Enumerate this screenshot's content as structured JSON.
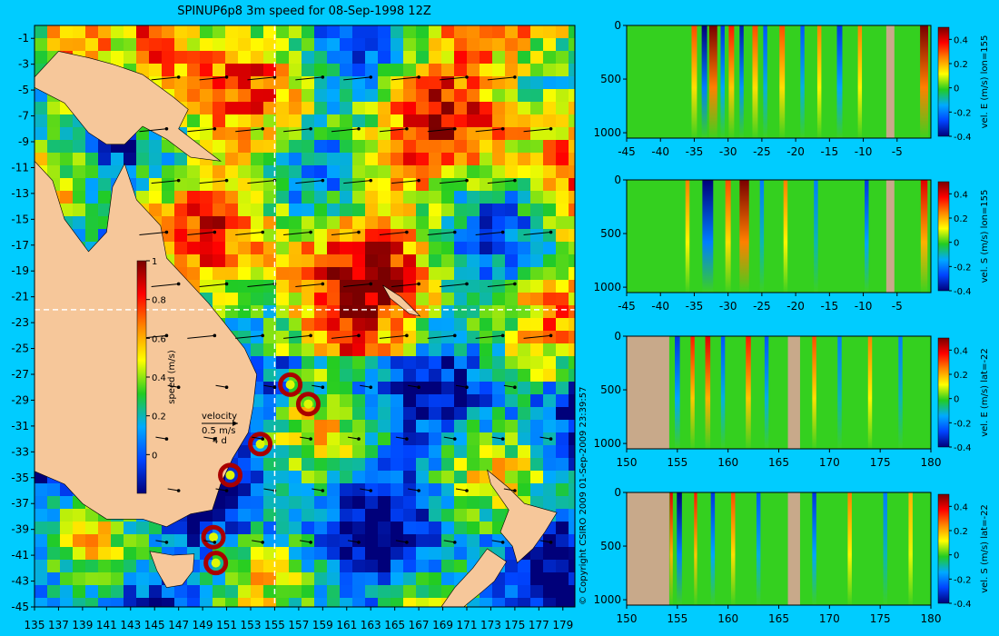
{
  "colors": {
    "background": "#00ccff",
    "land": "#f6c79a",
    "profile_land": "#c8a98a",
    "colormap": [
      "#00007a",
      "#0044ff",
      "#00aaff",
      "#22cc22",
      "#ffff00",
      "#ff8800",
      "#ff0000",
      "#7a0000"
    ]
  },
  "chart_data": [
    {
      "type": "heatmap",
      "title": "SPINUP6p8 3m speed for 08-Sep-1998 12Z",
      "xlim": [
        135,
        180
      ],
      "ylim": [
        -45,
        0
      ],
      "x_ticks": [
        "135",
        "137",
        "139",
        "141",
        "143",
        "145",
        "147",
        "149",
        "151",
        "153",
        "155",
        "157",
        "159",
        "161",
        "163",
        "165",
        "167",
        "169",
        "171",
        "173",
        "175",
        "177",
        "179"
      ],
      "y_ticks": [
        "-1",
        "-3",
        "-5",
        "-7",
        "-9",
        "-11",
        "-13",
        "-15",
        "-17",
        "-19",
        "-21",
        "-23",
        "-25",
        "-27",
        "-29",
        "-31",
        "-33",
        "-35",
        "-37",
        "-39",
        "-41",
        "-43",
        "-45"
      ],
      "section_lines": {
        "lon": 155,
        "lat": -22
      },
      "colorbar": {
        "label": "speed (m/s)",
        "range": [
          -0.2,
          1.0
        ],
        "ticks": [
          "1",
          "0.8",
          "0.6",
          "0.4",
          "0.2",
          "0"
        ]
      },
      "velocity_key": {
        "title": "velocity",
        "speed": "0.5 m/s",
        "duration": "4 d"
      },
      "eddies": [
        {
          "lon": 153.8,
          "lat": -32.4
        },
        {
          "lon": 151.3,
          "lat": -34.8
        },
        {
          "lon": 149.9,
          "lat": -39.6
        },
        {
          "lon": 150.1,
          "lat": -41.6
        },
        {
          "lon": 156.3,
          "lat": -27.8
        },
        {
          "lon": 157.8,
          "lat": -29.3
        }
      ]
    },
    {
      "type": "heatmap",
      "xlim": [
        -45,
        0
      ],
      "ylim": [
        1050,
        0
      ],
      "x_ticks": [
        "-45",
        "-40",
        "-35",
        "-30",
        "-25",
        "-20",
        "-15",
        "-10",
        "-5"
      ],
      "y_ticks": [
        "0",
        "500",
        "1000"
      ],
      "colorbar": {
        "label": "vel. E (m/s) lon=155",
        "range": [
          -0.4,
          0.5
        ],
        "ticks": [
          "0.4",
          "0.2",
          "0",
          "-0.2",
          "-0.4"
        ]
      },
      "land_bands": [
        [
          -6.6,
          -5.4
        ]
      ],
      "jets": [
        {
          "x": -35.0,
          "w": 0.8,
          "v": 0.3
        },
        {
          "x": -33.5,
          "w": 0.8,
          "v": -0.4
        },
        {
          "x": -32.2,
          "w": 1.2,
          "v": 0.5
        },
        {
          "x": -30.8,
          "w": 0.6,
          "v": -0.3
        },
        {
          "x": -29.5,
          "w": 0.8,
          "v": 0.35
        },
        {
          "x": -28.0,
          "w": 0.6,
          "v": -0.35
        },
        {
          "x": -26.0,
          "w": 0.8,
          "v": 0.3
        },
        {
          "x": -24.5,
          "w": 0.6,
          "v": -0.25
        },
        {
          "x": -22.0,
          "w": 0.8,
          "v": 0.3
        },
        {
          "x": -19.0,
          "w": 0.6,
          "v": -0.25
        },
        {
          "x": -16.5,
          "w": 0.6,
          "v": 0.25
        },
        {
          "x": -13.5,
          "w": 0.8,
          "v": -0.3
        },
        {
          "x": -10.5,
          "w": 0.6,
          "v": 0.25
        },
        {
          "x": -1.0,
          "w": 1.2,
          "v": 0.5
        }
      ]
    },
    {
      "type": "heatmap",
      "xlim": [
        -45,
        0
      ],
      "ylim": [
        1050,
        0
      ],
      "x_ticks": [
        "-45",
        "-40",
        "-35",
        "-30",
        "-25",
        "-20",
        "-15",
        "-10",
        "-5"
      ],
      "y_ticks": [
        "0",
        "500",
        "1000"
      ],
      "colorbar": {
        "label": "vel. S (m/s) lon=155",
        "range": [
          -0.4,
          0.5
        ],
        "ticks": [
          "0.4",
          "0.2",
          "0",
          "-0.2",
          "-0.4"
        ]
      },
      "land_bands": [
        [
          -6.6,
          -5.4
        ]
      ],
      "jets": [
        {
          "x": -36.0,
          "w": 0.6,
          "v": 0.25
        },
        {
          "x": -33.0,
          "w": 1.6,
          "v": -0.4
        },
        {
          "x": -30.0,
          "w": 0.8,
          "v": 0.3
        },
        {
          "x": -27.6,
          "w": 1.4,
          "v": 0.5
        },
        {
          "x": -25.0,
          "w": 0.6,
          "v": -0.2
        },
        {
          "x": -21.5,
          "w": 0.6,
          "v": 0.25
        },
        {
          "x": -17.0,
          "w": 0.6,
          "v": -0.2
        },
        {
          "x": -9.5,
          "w": 0.6,
          "v": -0.3
        },
        {
          "x": -1.0,
          "w": 1.0,
          "v": 0.4
        }
      ]
    },
    {
      "type": "heatmap",
      "xlim": [
        150,
        180
      ],
      "ylim": [
        1050,
        0
      ],
      "x_ticks": [
        "150",
        "155",
        "160",
        "165",
        "170",
        "175",
        "180"
      ],
      "y_ticks": [
        "0",
        "500",
        "1000"
      ],
      "colorbar": {
        "label": "vel. E (m/s) lat=-22",
        "range": [
          -0.4,
          0.5
        ],
        "ticks": [
          "0.4",
          "0.2",
          "0",
          "-0.2",
          "-0.4"
        ]
      },
      "land_bands": [
        [
          150,
          154.2
        ],
        [
          165.9,
          167.1
        ]
      ],
      "jets": [
        {
          "x": 155.0,
          "w": 0.5,
          "v": -0.3
        },
        {
          "x": 156.5,
          "w": 0.4,
          "v": 0.35
        },
        {
          "x": 158.0,
          "w": 0.5,
          "v": 0.4
        },
        {
          "x": 159.5,
          "w": 0.4,
          "v": -0.25
        },
        {
          "x": 162.0,
          "w": 0.5,
          "v": 0.35
        },
        {
          "x": 163.8,
          "w": 0.4,
          "v": -0.25
        },
        {
          "x": 168.5,
          "w": 0.4,
          "v": 0.3
        },
        {
          "x": 171.0,
          "w": 0.4,
          "v": -0.2
        },
        {
          "x": 174.0,
          "w": 0.4,
          "v": 0.25
        },
        {
          "x": 177.0,
          "w": 0.4,
          "v": -0.2
        }
      ]
    },
    {
      "type": "heatmap",
      "xlim": [
        150,
        180
      ],
      "ylim": [
        1050,
        0
      ],
      "x_ticks": [
        "150",
        "155",
        "160",
        "165",
        "170",
        "175",
        "180"
      ],
      "y_ticks": [
        "0",
        "500",
        "1000"
      ],
      "colorbar": {
        "label": "vel. S (m/s) lat=-22",
        "range": [
          -0.4,
          0.5
        ],
        "ticks": [
          "0.4",
          "0.2",
          "0",
          "-0.2",
          "-0.4"
        ]
      },
      "land_bands": [
        [
          150,
          154.2
        ],
        [
          165.9,
          167.1
        ]
      ],
      "jets": [
        {
          "x": 154.4,
          "w": 0.3,
          "v": 0.4
        },
        {
          "x": 155.2,
          "w": 0.5,
          "v": -0.4
        },
        {
          "x": 156.8,
          "w": 0.3,
          "v": 0.35
        },
        {
          "x": 158.5,
          "w": 0.4,
          "v": -0.3
        },
        {
          "x": 160.5,
          "w": 0.4,
          "v": 0.3
        },
        {
          "x": 163.0,
          "w": 0.4,
          "v": -0.25
        },
        {
          "x": 168.5,
          "w": 0.4,
          "v": -0.3
        },
        {
          "x": 172.0,
          "w": 0.4,
          "v": 0.25
        },
        {
          "x": 175.5,
          "w": 0.4,
          "v": -0.2
        },
        {
          "x": 178.0,
          "w": 0.4,
          "v": 0.2
        }
      ]
    }
  ],
  "copyright": "© Copyright CSIRO 2009   01-Sep-2009 23:39:57"
}
